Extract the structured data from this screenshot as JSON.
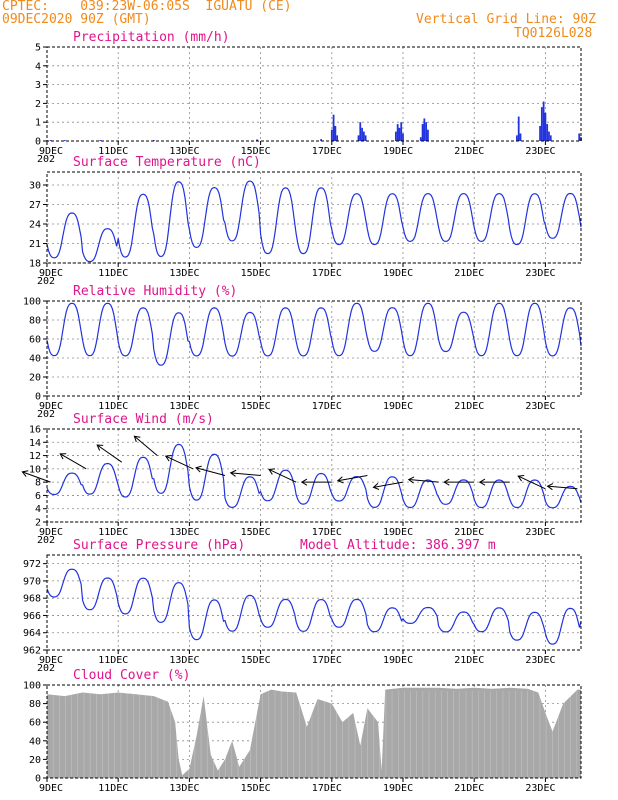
{
  "header": {
    "line1_left": "CPTEC:    039:23W-06:05S  IGUATU (CE)",
    "line2_left": "09DEC2020 90Z (GMT)",
    "line2_right": "Vertical Grid Line: 90Z",
    "line3_right": "TQ0126L028"
  },
  "colors": {
    "header": "#f08a1c",
    "title": "#e0148c",
    "series": "#2233dd",
    "cloud": "#a8a8a8"
  },
  "x_axis": {
    "ticks": [
      "9DEC",
      "11DEC",
      "13DEC",
      "15DEC",
      "17DEC",
      "19DEC",
      "21DEC",
      "23DEC"
    ],
    "tick_days": [
      0,
      2,
      4,
      6,
      8,
      10,
      12,
      14
    ],
    "range_days": [
      0,
      15
    ],
    "year_fragment": "202"
  },
  "chart_data": [
    {
      "type": "bar",
      "title": "Precipitation (mm/h)",
      "ylim": [
        0,
        5
      ],
      "yticks": [
        0,
        1,
        2,
        3,
        4,
        5
      ],
      "bars": [
        [
          0.1,
          0.05
        ],
        [
          0.5,
          0.05
        ],
        [
          1.5,
          0.05
        ],
        [
          3.0,
          0.05
        ],
        [
          5.9,
          0.08
        ],
        [
          7.7,
          0.1
        ],
        [
          8.0,
          0.6
        ],
        [
          8.05,
          1.4
        ],
        [
          8.1,
          0.8
        ],
        [
          8.15,
          0.3
        ],
        [
          8.75,
          0.3
        ],
        [
          8.8,
          1.0
        ],
        [
          8.85,
          0.7
        ],
        [
          8.9,
          0.5
        ],
        [
          8.95,
          0.3
        ],
        [
          9.8,
          0.5
        ],
        [
          9.85,
          0.9
        ],
        [
          9.9,
          0.7
        ],
        [
          9.95,
          1.0
        ],
        [
          10.0,
          0.4
        ],
        [
          10.5,
          0.2
        ],
        [
          10.55,
          0.9
        ],
        [
          10.6,
          1.2
        ],
        [
          10.65,
          1.0
        ],
        [
          10.7,
          0.6
        ],
        [
          13.2,
          0.3
        ],
        [
          13.25,
          1.3
        ],
        [
          13.3,
          0.4
        ],
        [
          13.85,
          0.8
        ],
        [
          13.9,
          1.8
        ],
        [
          13.95,
          2.1
        ],
        [
          14.0,
          1.5
        ],
        [
          14.05,
          0.9
        ],
        [
          14.1,
          0.5
        ],
        [
          14.15,
          0.3
        ],
        [
          14.95,
          0.4
        ],
        [
          15.0,
          0.2
        ]
      ]
    },
    {
      "type": "line",
      "title": "Surface Temperature (nC)",
      "ylim": [
        18,
        32
      ],
      "yticks": [
        18,
        21,
        24,
        27,
        30
      ],
      "daily_max": [
        26,
        23.5,
        29,
        31,
        30,
        31,
        30,
        30,
        29,
        29,
        29,
        29,
        29,
        29,
        29,
        29
      ],
      "daily_min": [
        18.5,
        18,
        18.5,
        18.5,
        20,
        21,
        19,
        19,
        20.5,
        20.5,
        21,
        21,
        21,
        20.5,
        21.5,
        21
      ]
    },
    {
      "type": "line",
      "title": "Relative Humidity (%)",
      "ylim": [
        0,
        100
      ],
      "yticks": [
        0,
        20,
        40,
        60,
        80,
        100
      ],
      "daily_max": [
        100,
        100,
        95,
        90,
        95,
        90,
        95,
        95,
        100,
        95,
        100,
        90,
        100,
        100,
        95,
        80
      ],
      "daily_min": [
        40,
        40,
        40,
        30,
        40,
        40,
        40,
        40,
        40,
        45,
        40,
        45,
        40,
        40,
        40,
        40
      ]
    },
    {
      "type": "line",
      "title": "Surface Wind (m/s)",
      "ylim": [
        2,
        16
      ],
      "yticks": [
        2,
        4,
        6,
        8,
        10,
        12,
        14,
        16
      ],
      "daily_max": [
        9.5,
        11,
        12,
        14,
        12.5,
        9,
        10,
        9.5,
        9,
        9,
        8.5,
        8.5,
        8.5,
        8.5,
        7.5,
        7
      ],
      "daily_min": [
        6,
        6,
        5.5,
        6,
        5,
        4,
        5,
        4.5,
        5,
        4,
        4,
        4.5,
        4,
        4,
        4,
        4
      ],
      "arrows": [
        {
          "day": 0.1,
          "speed": 8,
          "dir_deg": 160
        },
        {
          "day": 1.1,
          "speed": 10,
          "dir_deg": 150
        },
        {
          "day": 2.1,
          "speed": 11,
          "dir_deg": 145
        },
        {
          "day": 3.1,
          "speed": 12,
          "dir_deg": 140
        },
        {
          "day": 4.1,
          "speed": 10,
          "dir_deg": 155
        },
        {
          "day": 5.0,
          "speed": 9,
          "dir_deg": 165
        },
        {
          "day": 6.0,
          "speed": 9,
          "dir_deg": 175
        },
        {
          "day": 7.0,
          "speed": 8,
          "dir_deg": 155
        },
        {
          "day": 8.0,
          "speed": 8,
          "dir_deg": 180
        },
        {
          "day": 9.0,
          "speed": 9,
          "dir_deg": 190
        },
        {
          "day": 10.0,
          "speed": 8,
          "dir_deg": 190
        },
        {
          "day": 11.0,
          "speed": 8,
          "dir_deg": 175
        },
        {
          "day": 12.0,
          "speed": 8,
          "dir_deg": 180
        },
        {
          "day": 13.0,
          "speed": 8,
          "dir_deg": 180
        },
        {
          "day": 14.0,
          "speed": 7,
          "dir_deg": 155
        },
        {
          "day": 14.9,
          "speed": 7,
          "dir_deg": 175
        }
      ]
    },
    {
      "type": "line",
      "title": "Surface Pressure (hPa)",
      "annotation": "Model Altitude: 386.397 m",
      "ylim": [
        962,
        973
      ],
      "yticks": [
        962,
        964,
        966,
        968,
        970,
        972
      ],
      "daily_max": [
        971.5,
        970.5,
        970.5,
        970,
        968,
        968.5,
        968,
        968,
        968,
        967,
        967,
        966.5,
        967,
        966.5,
        967,
        966
      ],
      "daily_min": [
        968,
        966.5,
        966,
        965,
        963,
        964,
        964.5,
        964,
        964.5,
        964,
        965,
        964,
        964,
        963,
        962.5,
        965
      ]
    },
    {
      "type": "area",
      "title": "Cloud Cover (%)",
      "ylim": [
        0,
        100
      ],
      "yticks": [
        0,
        20,
        40,
        60,
        80,
        100
      ],
      "segments": [
        [
          0,
          90
        ],
        [
          0.5,
          88
        ],
        [
          1.0,
          92
        ],
        [
          1.5,
          90
        ],
        [
          2.0,
          92
        ],
        [
          2.5,
          90
        ],
        [
          3.0,
          88
        ],
        [
          3.4,
          82
        ],
        [
          3.6,
          60
        ],
        [
          3.7,
          20
        ],
        [
          3.8,
          3
        ],
        [
          4.0,
          10
        ],
        [
          4.2,
          45
        ],
        [
          4.4,
          88
        ],
        [
          4.6,
          25
        ],
        [
          4.8,
          8
        ],
        [
          5.0,
          20
        ],
        [
          5.2,
          40
        ],
        [
          5.4,
          12
        ],
        [
          5.7,
          30
        ],
        [
          6.0,
          90
        ],
        [
          6.3,
          95
        ],
        [
          6.6,
          93
        ],
        [
          7.0,
          92
        ],
        [
          7.3,
          55
        ],
        [
          7.6,
          85
        ],
        [
          8.0,
          80
        ],
        [
          8.3,
          60
        ],
        [
          8.6,
          70
        ],
        [
          8.8,
          35
        ],
        [
          9.0,
          75
        ],
        [
          9.3,
          60
        ],
        [
          9.4,
          8
        ],
        [
          9.5,
          95
        ],
        [
          10.0,
          97
        ],
        [
          10.5,
          97
        ],
        [
          11.0,
          97
        ],
        [
          11.5,
          96
        ],
        [
          12.0,
          97
        ],
        [
          12.5,
          96
        ],
        [
          13.0,
          97
        ],
        [
          13.5,
          96
        ],
        [
          13.8,
          92
        ],
        [
          14.0,
          70
        ],
        [
          14.2,
          50
        ],
        [
          14.5,
          80
        ],
        [
          14.9,
          95
        ],
        [
          15,
          95
        ]
      ]
    }
  ]
}
